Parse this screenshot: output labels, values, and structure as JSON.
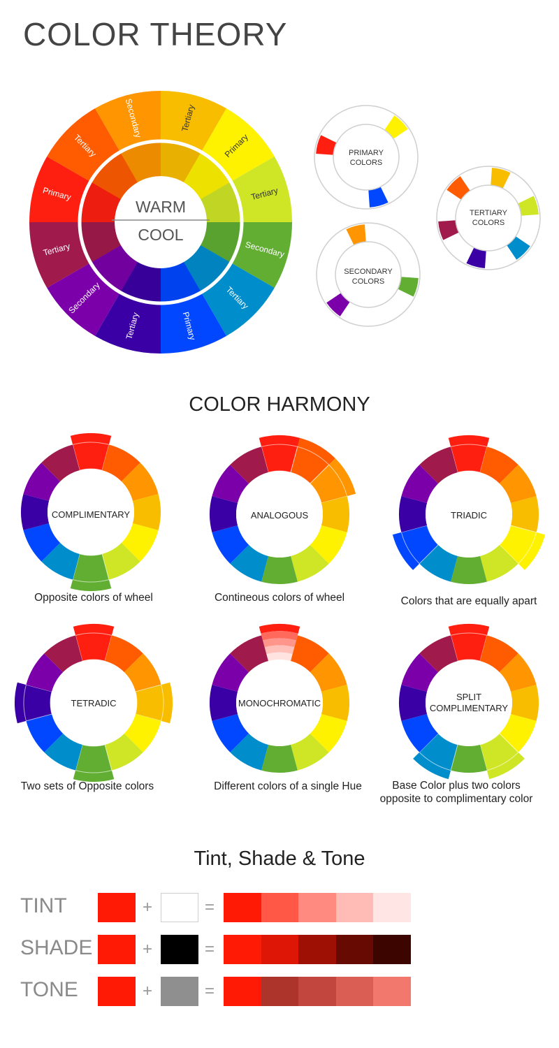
{
  "header": {
    "title": "COLOR THEORY"
  },
  "main_wheel": {
    "warm_label": "WARM",
    "cool_label": "COOL",
    "segments": [
      {
        "label": "Tertiary",
        "color": "#f9bd00"
      },
      {
        "label": "Primary",
        "color": "#fff200"
      },
      {
        "label": "Tertiary",
        "color": "#cfe627"
      },
      {
        "label": "Secondary",
        "color": "#61ae33"
      },
      {
        "label": "Tertiary",
        "color": "#008dcc"
      },
      {
        "label": "Primary",
        "color": "#0047ff"
      },
      {
        "label": "Tertiary",
        "color": "#3a00a5"
      },
      {
        "label": "Secondary",
        "color": "#7b00aa"
      },
      {
        "label": "Tertiary",
        "color": "#a01a4c"
      },
      {
        "label": "Primary",
        "color": "#ff1f10"
      },
      {
        "label": "Tertiary",
        "color": "#ff5b00"
      },
      {
        "label": "Secondary",
        "color": "#ff9500"
      }
    ]
  },
  "mini_wheels": {
    "primary": {
      "line1": "PRIMARY",
      "line2": "COLORS"
    },
    "secondary": {
      "line1": "SECONDARY",
      "line2": "COLORS"
    },
    "tertiary": {
      "line1": "TERTIARY",
      "line2": "COLORS"
    }
  },
  "harmony": {
    "title": "COLOR HARMONY",
    "wheels": [
      {
        "name": "COMPLIMENTARY",
        "caption": "Opposite colors of wheel"
      },
      {
        "name": "ANALOGOUS",
        "caption": "Contineous colors of wheel"
      },
      {
        "name": "TRIADIC",
        "caption": "Colors that are equally apart"
      },
      {
        "name": "TETRADIC",
        "caption": "Two sets of Opposite colors"
      },
      {
        "name": "MONOCHROMATIC",
        "caption": "Different colors of a single Hue"
      },
      {
        "name_line1": "SPLIT",
        "name_line2": "COMPLIMENTARY",
        "caption_line1": "Base Color plus two colors",
        "caption_line2": "opposite to complimentary color"
      }
    ]
  },
  "tst": {
    "title": "Tint, Shade & Tone",
    "plus": "+",
    "equals": "=",
    "rows": [
      {
        "label": "TINT",
        "base": "#ff1a05",
        "mix": "#ffffff",
        "steps": [
          "#ff1a05",
          "#ff5847",
          "#ff8a7f",
          "#ffbcb6",
          "#ffe6e4"
        ]
      },
      {
        "label": "SHADE",
        "base": "#ff1a05",
        "mix": "#000000",
        "steps": [
          "#ff1a05",
          "#dd1605",
          "#9e1004",
          "#660a02",
          "#3d0500"
        ]
      },
      {
        "label": "TONE",
        "base": "#ff1a05",
        "mix": "#8f8f8f",
        "steps": [
          "#ff1a05",
          "#ad342b",
          "#c2463d",
          "#da5e53",
          "#f2786d"
        ]
      }
    ]
  }
}
